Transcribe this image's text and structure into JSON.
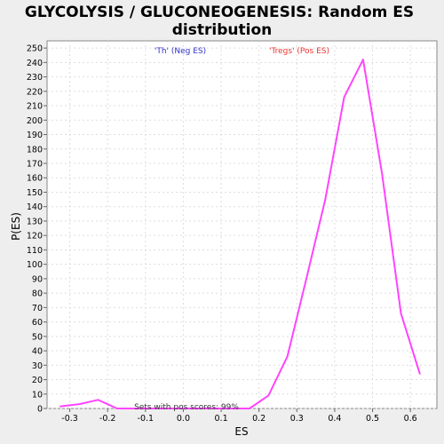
{
  "chart_data": {
    "type": "line",
    "title_line1": "GLYCOLYSIS / GLUCONEOGENESIS: Random ES",
    "title_line2": "distribution",
    "xlabel": "ES",
    "ylabel": "P(ES)",
    "xlim": [
      -0.36,
      0.67
    ],
    "ylim": [
      0,
      255
    ],
    "x_ticks": [
      -0.3,
      -0.2,
      -0.1,
      0.0,
      0.1,
      0.2,
      0.3,
      0.4,
      0.5,
      0.6
    ],
    "x_tick_labels": [
      "-0.3",
      "-0.2",
      "-0.1",
      "0.0",
      "0.1",
      "0.2",
      "0.3",
      "0.4",
      "0.5",
      "0.6"
    ],
    "y_ticks": [
      0,
      10,
      20,
      30,
      40,
      50,
      60,
      70,
      80,
      90,
      100,
      110,
      120,
      130,
      140,
      150,
      160,
      170,
      180,
      190,
      200,
      210,
      220,
      230,
      240,
      250
    ],
    "grid": true,
    "series": [
      {
        "color": "#ff44ff",
        "x": [
          -0.325,
          -0.275,
          -0.225,
          -0.175,
          -0.125,
          -0.075,
          -0.025,
          0.025,
          0.075,
          0.125,
          0.175,
          0.225,
          0.275,
          0.325,
          0.375,
          0.425,
          0.475,
          0.525,
          0.575,
          0.625
        ],
        "y": [
          1.5,
          3,
          6,
          0,
          0,
          0,
          0,
          0,
          0,
          0,
          0,
          9,
          36,
          90,
          145,
          216,
          242,
          163,
          66,
          24
        ]
      }
    ],
    "annotations": {
      "neg_label": "'Th' (Neg ES)",
      "neg_color": "#3333cc",
      "pos_label": "'Tregs' (Pos ES)",
      "pos_color": "#ee3333",
      "footer": "Sets with pos scores: 99%"
    }
  }
}
